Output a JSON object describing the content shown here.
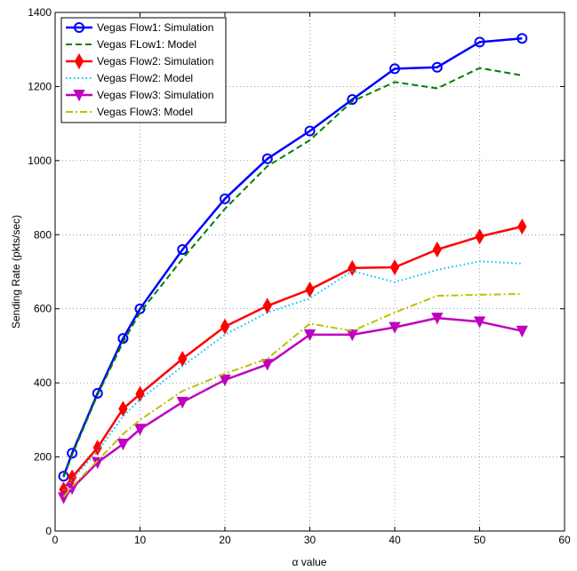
{
  "chart_data": {
    "type": "line",
    "title": "",
    "xlabel": "α value",
    "ylabel": "Sending Rate (pkts/sec)",
    "xlim": [
      0,
      60
    ],
    "ylim": [
      0,
      1400
    ],
    "xticks": [
      0,
      10,
      20,
      30,
      40,
      50,
      60
    ],
    "yticks": [
      0,
      200,
      400,
      600,
      800,
      1000,
      1200,
      1400
    ],
    "grid": true,
    "legend_position": "top-left",
    "series": [
      {
        "name": "Vegas Flow1: Simulation",
        "color": "#0000ff",
        "line": "solid",
        "marker": "circle",
        "x": [
          1,
          2,
          5,
          8,
          10,
          15,
          20,
          25,
          30,
          35,
          40,
          45,
          50,
          55
        ],
        "y": [
          148,
          210,
          372,
          520,
          600,
          760,
          897,
          1005,
          1080,
          1165,
          1248,
          1252,
          1320,
          1330
        ]
      },
      {
        "name": "Vegas FLow1: Model",
        "color": "#007f00",
        "line": "dashed",
        "marker": "none",
        "x": [
          1,
          2,
          5,
          8,
          10,
          15,
          20,
          25,
          30,
          35,
          40,
          45,
          50,
          55
        ],
        "y": [
          145,
          205,
          368,
          510,
          590,
          735,
          870,
          985,
          1055,
          1160,
          1212,
          1195,
          1250,
          1230
        ]
      },
      {
        "name": "Vegas Flow2: Simulation",
        "color": "#ff0000",
        "line": "solid",
        "marker": "diamond",
        "x": [
          1,
          2,
          5,
          8,
          10,
          15,
          20,
          25,
          30,
          35,
          40,
          45,
          50,
          55
        ],
        "y": [
          112,
          145,
          225,
          330,
          370,
          465,
          552,
          608,
          652,
          710,
          712,
          760,
          795,
          822
        ]
      },
      {
        "name": "Vegas Flow2: Model",
        "color": "#00bfff",
        "line": "dotted",
        "marker": "none",
        "x": [
          1,
          2,
          5,
          8,
          10,
          15,
          20,
          25,
          30,
          35,
          40,
          45,
          50,
          55
        ],
        "y": [
          110,
          140,
          215,
          310,
          355,
          445,
          530,
          590,
          628,
          702,
          672,
          705,
          728,
          722
        ]
      },
      {
        "name": "Vegas Flow3: Simulation",
        "color": "#bf00bf",
        "line": "solid",
        "marker": "triangle-down",
        "x": [
          1,
          2,
          5,
          8,
          10,
          15,
          20,
          25,
          30,
          35,
          40,
          45,
          50,
          55
        ],
        "y": [
          90,
          115,
          185,
          235,
          275,
          348,
          408,
          450,
          530,
          530,
          550,
          575,
          565,
          540
        ]
      },
      {
        "name": "Vegas Flow3: Model",
        "color": "#bfbf00",
        "line": "dashdot",
        "marker": "none",
        "x": [
          1,
          2,
          5,
          8,
          10,
          15,
          20,
          25,
          30,
          35,
          40,
          45,
          50,
          55
        ],
        "y": [
          92,
          120,
          190,
          262,
          300,
          378,
          425,
          465,
          560,
          540,
          590,
          635,
          638,
          640
        ]
      }
    ]
  }
}
